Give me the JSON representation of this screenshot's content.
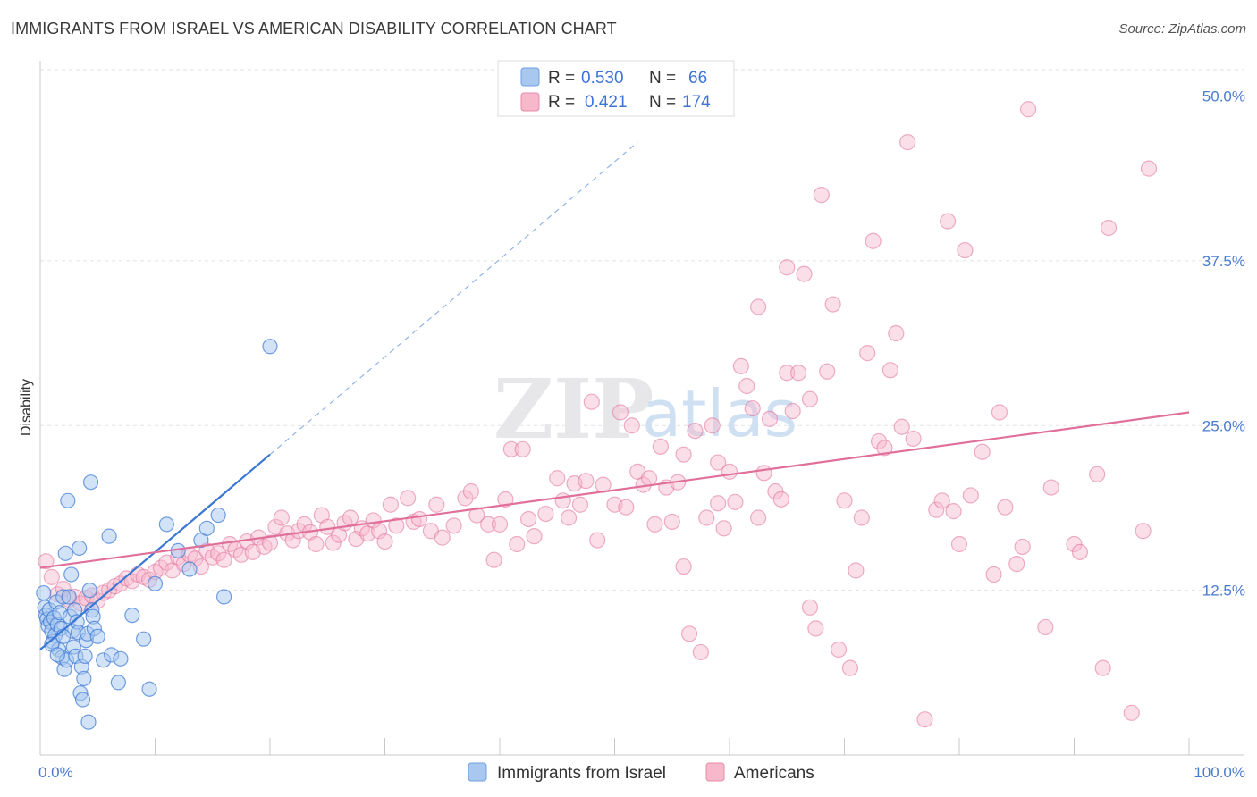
{
  "header": {
    "title": "IMMIGRANTS FROM ISRAEL VS AMERICAN DISABILITY CORRELATION CHART",
    "source": "Source: ZipAtlas.com"
  },
  "watermark": {
    "zip": "ZIP",
    "atlas": "atlas"
  },
  "legend": {
    "rows": [
      {
        "r_label": "R =",
        "r_value": "0.530",
        "n_label": "N =",
        "n_value": "66",
        "color": "#a8c8f0",
        "stroke": "#6f9fe0"
      },
      {
        "r_label": "R =",
        "r_value": "0.421",
        "n_label": "N =",
        "n_value": "174",
        "color": "#f7b8cb",
        "stroke": "#e88aa8"
      }
    ]
  },
  "bottom_legend": [
    {
      "label": "Immigrants from Israel",
      "color": "#a8c8f0",
      "stroke": "#6f9fe0"
    },
    {
      "label": "Americans",
      "color": "#f7b8cb",
      "stroke": "#e88aa8"
    }
  ],
  "chart_data": {
    "type": "scatter",
    "title": "IMMIGRANTS FROM ISRAEL VS AMERICAN DISABILITY CORRELATION CHART",
    "xlabel": "",
    "ylabel": "Disability",
    "xlim": [
      0,
      100
    ],
    "ylim": [
      0,
      52
    ],
    "x_tick_labels": [
      "0.0%",
      "100.0%"
    ],
    "y_ticks": [
      12.5,
      25.0,
      37.5,
      50.0
    ],
    "y_tick_labels": [
      "12.5%",
      "25.0%",
      "37.5%",
      "50.0%"
    ],
    "grid": true,
    "colors": {
      "israel": "#3a78d4",
      "israel_fill": "#a8c8f0",
      "americans": "#e0709a",
      "americans_fill": "#f7b8cb"
    },
    "series": [
      {
        "name": "Immigrants from Israel",
        "trend": {
          "x": [
            0,
            20
          ],
          "y": [
            8.0,
            22.8
          ],
          "dashed_to": {
            "x": 52,
            "y": 46.5
          }
        },
        "points": [
          [
            0.3,
            12.3
          ],
          [
            0.4,
            11.2
          ],
          [
            0.5,
            10.6
          ],
          [
            0.6,
            10.3
          ],
          [
            0.7,
            9.8
          ],
          [
            0.8,
            11.0
          ],
          [
            0.9,
            10.1
          ],
          [
            1.0,
            9.4
          ],
          [
            1.1,
            8.6
          ],
          [
            1.2,
            10.4
          ],
          [
            1.3,
            9.1
          ],
          [
            1.4,
            11.6
          ],
          [
            1.5,
            9.9
          ],
          [
            1.6,
            8.0
          ],
          [
            1.7,
            10.8
          ],
          [
            1.8,
            9.6
          ],
          [
            1.9,
            7.4
          ],
          [
            2.0,
            12.0
          ],
          [
            2.1,
            6.5
          ],
          [
            2.2,
            15.3
          ],
          [
            2.3,
            7.2
          ],
          [
            2.4,
            19.3
          ],
          [
            2.5,
            12.0
          ],
          [
            2.6,
            10.5
          ],
          [
            2.7,
            13.7
          ],
          [
            2.8,
            9.4
          ],
          [
            2.9,
            8.2
          ],
          [
            3.0,
            11.0
          ],
          [
            3.1,
            7.5
          ],
          [
            3.2,
            10.1
          ],
          [
            3.3,
            9.3
          ],
          [
            3.4,
            15.7
          ],
          [
            3.5,
            4.7
          ],
          [
            3.6,
            6.7
          ],
          [
            3.7,
            4.2
          ],
          [
            3.8,
            5.8
          ],
          [
            3.9,
            7.5
          ],
          [
            4.0,
            8.7
          ],
          [
            4.1,
            9.2
          ],
          [
            4.2,
            2.5
          ],
          [
            4.3,
            12.5
          ],
          [
            4.4,
            20.7
          ],
          [
            4.5,
            11.0
          ],
          [
            4.6,
            10.5
          ],
          [
            4.7,
            9.6
          ],
          [
            5.0,
            9.0
          ],
          [
            5.5,
            7.2
          ],
          [
            6.0,
            16.6
          ],
          [
            6.2,
            7.6
          ],
          [
            6.8,
            5.5
          ],
          [
            7.0,
            7.3
          ],
          [
            8.0,
            10.6
          ],
          [
            9.0,
            8.8
          ],
          [
            9.5,
            5.0
          ],
          [
            10.0,
            13.0
          ],
          [
            11.0,
            17.5
          ],
          [
            12.0,
            15.5
          ],
          [
            13.0,
            14.1
          ],
          [
            14.0,
            16.3
          ],
          [
            14.5,
            17.2
          ],
          [
            15.5,
            18.2
          ],
          [
            16.0,
            12.0
          ],
          [
            20.0,
            31.0
          ],
          [
            1.0,
            8.4
          ],
          [
            1.5,
            7.6
          ],
          [
            2.0,
            9.0
          ]
        ]
      },
      {
        "name": "Americans",
        "trend": {
          "x": [
            0,
            100
          ],
          "y": [
            14.2,
            26.0
          ]
        },
        "points": [
          [
            0.5,
            14.7
          ],
          [
            1.0,
            13.5
          ],
          [
            1.5,
            12.2
          ],
          [
            2.0,
            12.6
          ],
          [
            2.5,
            11.8
          ],
          [
            3.0,
            12.0
          ],
          [
            3.5,
            11.5
          ],
          [
            4.0,
            11.9
          ],
          [
            4.5,
            12.1
          ],
          [
            5.0,
            11.7
          ],
          [
            5.5,
            12.3
          ],
          [
            6.0,
            12.5
          ],
          [
            6.5,
            12.8
          ],
          [
            7.0,
            13.0
          ],
          [
            7.5,
            13.4
          ],
          [
            8.0,
            13.2
          ],
          [
            8.5,
            13.7
          ],
          [
            9.0,
            13.5
          ],
          [
            9.5,
            13.3
          ],
          [
            10.0,
            13.9
          ],
          [
            10.5,
            14.2
          ],
          [
            11.0,
            14.6
          ],
          [
            11.5,
            14.0
          ],
          [
            12.0,
            15.0
          ],
          [
            12.5,
            14.5
          ],
          [
            13.0,
            15.2
          ],
          [
            13.5,
            14.9
          ],
          [
            14.0,
            14.3
          ],
          [
            14.5,
            15.5
          ],
          [
            15.0,
            15.0
          ],
          [
            15.5,
            15.3
          ],
          [
            16.0,
            14.8
          ],
          [
            16.5,
            16.0
          ],
          [
            17.0,
            15.6
          ],
          [
            17.5,
            15.2
          ],
          [
            18.0,
            16.2
          ],
          [
            18.5,
            15.4
          ],
          [
            19.0,
            16.5
          ],
          [
            19.5,
            15.8
          ],
          [
            20.0,
            16.1
          ],
          [
            20.5,
            17.3
          ],
          [
            21.0,
            18.0
          ],
          [
            21.5,
            16.8
          ],
          [
            22.0,
            16.3
          ],
          [
            22.5,
            17.0
          ],
          [
            23.0,
            17.5
          ],
          [
            23.5,
            16.9
          ],
          [
            24.0,
            16.0
          ],
          [
            24.5,
            18.2
          ],
          [
            25.0,
            17.3
          ],
          [
            25.5,
            16.1
          ],
          [
            26.0,
            16.7
          ],
          [
            26.5,
            17.6
          ],
          [
            27.0,
            18.0
          ],
          [
            27.5,
            16.4
          ],
          [
            28.0,
            17.2
          ],
          [
            28.5,
            16.8
          ],
          [
            29.0,
            17.8
          ],
          [
            29.5,
            17.0
          ],
          [
            30.0,
            16.2
          ],
          [
            30.5,
            19.0
          ],
          [
            31.0,
            17.4
          ],
          [
            32.0,
            19.5
          ],
          [
            32.5,
            17.7
          ],
          [
            33.0,
            17.9
          ],
          [
            34.0,
            17.0
          ],
          [
            34.5,
            19.0
          ],
          [
            35.0,
            16.5
          ],
          [
            36.0,
            17.4
          ],
          [
            37.0,
            19.5
          ],
          [
            37.5,
            20.0
          ],
          [
            38.0,
            18.2
          ],
          [
            39.0,
            17.5
          ],
          [
            39.5,
            14.8
          ],
          [
            40.0,
            17.5
          ],
          [
            40.5,
            19.4
          ],
          [
            41.0,
            23.2
          ],
          [
            41.5,
            16.0
          ],
          [
            42.0,
            23.2
          ],
          [
            42.5,
            17.9
          ],
          [
            43.0,
            16.6
          ],
          [
            44.0,
            18.3
          ],
          [
            45.0,
            21.0
          ],
          [
            45.5,
            19.3
          ],
          [
            46.0,
            18.0
          ],
          [
            46.5,
            20.6
          ],
          [
            47.0,
            19.0
          ],
          [
            47.5,
            20.8
          ],
          [
            48.0,
            26.8
          ],
          [
            48.5,
            16.3
          ],
          [
            49.0,
            20.5
          ],
          [
            50.0,
            19.0
          ],
          [
            50.5,
            26.0
          ],
          [
            51.0,
            18.8
          ],
          [
            51.5,
            25.0
          ],
          [
            52.0,
            21.5
          ],
          [
            52.5,
            20.5
          ],
          [
            53.0,
            21.0
          ],
          [
            53.5,
            17.5
          ],
          [
            54.0,
            23.4
          ],
          [
            54.5,
            20.3
          ],
          [
            55.0,
            17.7
          ],
          [
            55.5,
            20.7
          ],
          [
            56.0,
            14.3
          ],
          [
            56.5,
            9.2
          ],
          [
            57.0,
            24.6
          ],
          [
            57.5,
            7.8
          ],
          [
            58.0,
            18.0
          ],
          [
            58.5,
            25.0
          ],
          [
            59.0,
            22.2
          ],
          [
            59.5,
            17.2
          ],
          [
            60.0,
            21.5
          ],
          [
            60.5,
            19.2
          ],
          [
            61.0,
            29.5
          ],
          [
            61.5,
            28.0
          ],
          [
            62.0,
            26.3
          ],
          [
            62.5,
            18.0
          ],
          [
            63.0,
            21.4
          ],
          [
            63.5,
            25.5
          ],
          [
            64.0,
            20.0
          ],
          [
            64.5,
            19.4
          ],
          [
            65.0,
            29.0
          ],
          [
            65.5,
            26.1
          ],
          [
            66.0,
            29.0
          ],
          [
            66.5,
            36.5
          ],
          [
            67.0,
            11.2
          ],
          [
            67.5,
            9.6
          ],
          [
            68.0,
            42.5
          ],
          [
            68.5,
            29.1
          ],
          [
            69.0,
            34.2
          ],
          [
            69.5,
            8.0
          ],
          [
            70.0,
            19.3
          ],
          [
            70.5,
            6.6
          ],
          [
            71.0,
            14.0
          ],
          [
            71.5,
            18.0
          ],
          [
            72.0,
            30.5
          ],
          [
            72.5,
            39.0
          ],
          [
            73.0,
            23.8
          ],
          [
            73.5,
            23.3
          ],
          [
            74.0,
            29.2
          ],
          [
            74.5,
            32.0
          ],
          [
            75.0,
            24.9
          ],
          [
            75.5,
            46.5
          ],
          [
            76.0,
            24.0
          ],
          [
            77.0,
            2.7
          ],
          [
            78.0,
            18.6
          ],
          [
            78.5,
            19.3
          ],
          [
            79.0,
            40.5
          ],
          [
            79.5,
            18.5
          ],
          [
            80.0,
            16.0
          ],
          [
            80.5,
            38.3
          ],
          [
            81.0,
            19.7
          ],
          [
            82.0,
            23.0
          ],
          [
            83.0,
            13.7
          ],
          [
            83.5,
            26.0
          ],
          [
            84.0,
            18.8
          ],
          [
            85.0,
            14.5
          ],
          [
            85.5,
            15.8
          ],
          [
            86.0,
            49.0
          ],
          [
            87.5,
            9.7
          ],
          [
            88.0,
            20.3
          ],
          [
            90.0,
            16.0
          ],
          [
            90.5,
            15.4
          ],
          [
            92.0,
            21.3
          ],
          [
            92.5,
            6.6
          ],
          [
            93.0,
            40.0
          ],
          [
            95.0,
            3.2
          ],
          [
            96.0,
            17.0
          ],
          [
            96.5,
            44.5
          ],
          [
            65.0,
            37.0
          ],
          [
            62.5,
            34.0
          ],
          [
            56.0,
            22.8
          ],
          [
            59.0,
            19.1
          ],
          [
            67.0,
            27.0
          ]
        ]
      }
    ]
  }
}
